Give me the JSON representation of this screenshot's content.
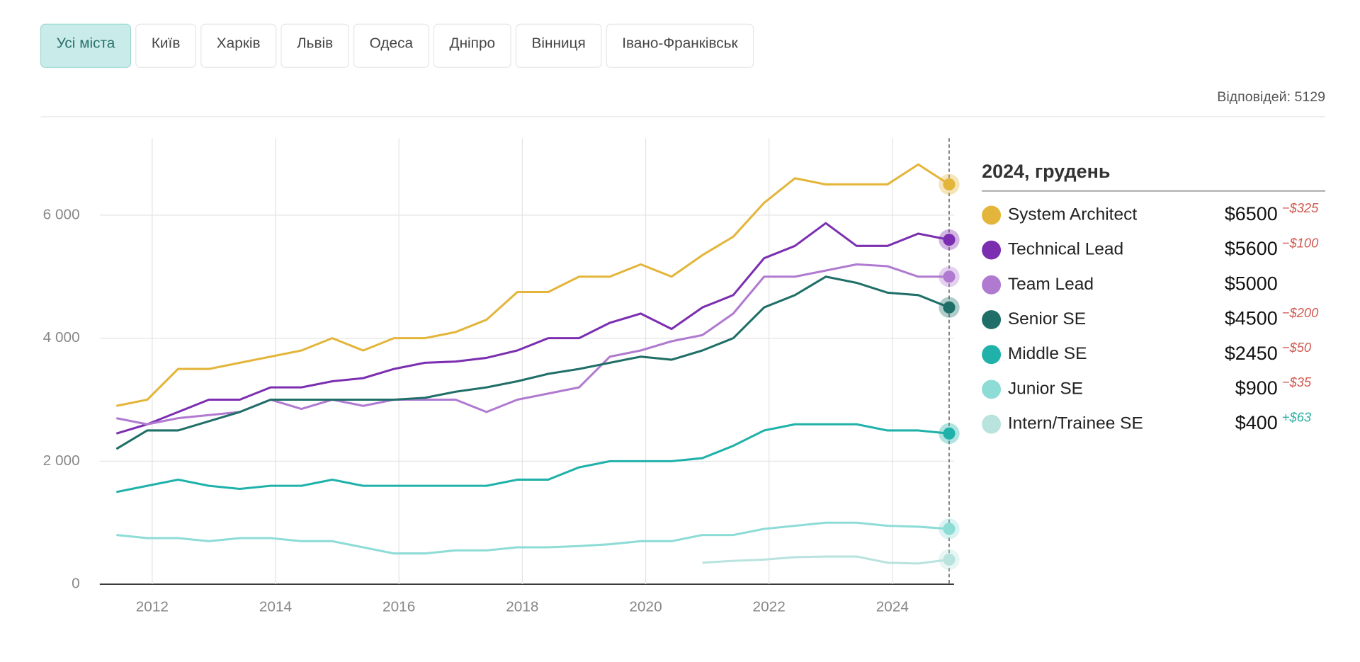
{
  "tabs": {
    "items": [
      "Усі міста",
      "Київ",
      "Харків",
      "Львів",
      "Одеса",
      "Дніпро",
      "Вінниця",
      "Івано-Франківськ"
    ],
    "active": 0
  },
  "responses": "Відповідей: 5129",
  "chart_data": {
    "type": "line",
    "x": [
      2011.42,
      2011.92,
      2012.42,
      2012.92,
      2013.42,
      2013.92,
      2014.42,
      2014.92,
      2015.42,
      2015.92,
      2016.42,
      2016.92,
      2017.42,
      2017.92,
      2018.42,
      2018.92,
      2019.42,
      2019.92,
      2020.42,
      2020.92,
      2021.42,
      2021.92,
      2022.42,
      2022.92,
      2023.42,
      2023.92,
      2024.42,
      2024.92
    ],
    "xlim": [
      2011.15,
      2025.0
    ],
    "xticks": [
      2012,
      2014,
      2016,
      2018,
      2020,
      2022,
      2024
    ],
    "ylim": [
      0,
      7250
    ],
    "yticks": [
      0,
      {
        "value": 2000,
        "label": "2 000"
      },
      {
        "value": 4000,
        "label": "4 000"
      },
      {
        "value": 6000,
        "label": "6 000"
      }
    ],
    "grid": true,
    "legend_title": "2024, грудень",
    "series": [
      {
        "name": "System Architect",
        "color": "#e3b53a",
        "values": [
          2900,
          3000,
          3500,
          3500,
          3600,
          3700,
          3800,
          4000,
          3800,
          4000,
          4000,
          4100,
          4300,
          4750,
          4750,
          5000,
          5000,
          5200,
          5000,
          5350,
          5650,
          6200,
          6600,
          6500,
          6500,
          6500,
          6825,
          6500
        ],
        "value_label": "$6500",
        "change": {
          "value": -325,
          "label": "−$325"
        }
      },
      {
        "name": "Technical Lead",
        "color": "#7b2fb0",
        "values": [
          2450,
          2600,
          2800,
          3000,
          3000,
          3200,
          3200,
          3300,
          3350,
          3500,
          3600,
          3620,
          3680,
          3800,
          4000,
          4000,
          4250,
          4400,
          4150,
          4500,
          4700,
          5300,
          5500,
          5870,
          5500,
          5500,
          5700,
          5600
        ],
        "value_label": "$5600",
        "change": {
          "value": -100,
          "label": "−$100"
        }
      },
      {
        "name": "Team Lead",
        "color": "#b07ad0",
        "values": [
          2700,
          2600,
          2700,
          2750,
          2800,
          3000,
          2850,
          3000,
          2900,
          3000,
          3000,
          3000,
          2800,
          3000,
          3100,
          3200,
          3700,
          3800,
          3950,
          4050,
          4400,
          5000,
          5000,
          5100,
          5200,
          5170,
          5000,
          5000
        ],
        "value_label": "$5000"
      },
      {
        "name": "Senior SE",
        "color": "#1f6f68",
        "values": [
          2200,
          2500,
          2500,
          2650,
          2800,
          3000,
          3000,
          3000,
          3000,
          3000,
          3030,
          3130,
          3200,
          3300,
          3420,
          3500,
          3600,
          3700,
          3650,
          3800,
          4000,
          4500,
          4700,
          5000,
          4900,
          4740,
          4700,
          4500
        ],
        "value_label": "$4500",
        "change": {
          "value": -200,
          "label": "−$200"
        }
      },
      {
        "name": "Middle SE",
        "color": "#20b2aa",
        "values": [
          1500,
          1600,
          1700,
          1600,
          1550,
          1600,
          1600,
          1700,
          1600,
          1600,
          1600,
          1600,
          1600,
          1700,
          1700,
          1900,
          2000,
          2000,
          2000,
          2050,
          2250,
          2500,
          2600,
          2600,
          2600,
          2500,
          2500,
          2450
        ],
        "value_label": "$2450",
        "change": {
          "value": -50,
          "label": "−$50"
        }
      },
      {
        "name": "Junior SE",
        "color": "#8edcd6",
        "values": [
          800,
          750,
          750,
          700,
          750,
          750,
          700,
          700,
          600,
          500,
          500,
          550,
          550,
          600,
          600,
          620,
          650,
          700,
          700,
          800,
          800,
          900,
          950,
          1000,
          1000,
          950,
          935,
          900
        ],
        "value_label": "$900",
        "change": {
          "value": -35,
          "label": "−$35"
        }
      },
      {
        "name": "Intern/Trainee SE",
        "color": "#b9e3de",
        "values": [
          null,
          null,
          null,
          null,
          null,
          null,
          null,
          null,
          null,
          null,
          null,
          null,
          null,
          null,
          null,
          null,
          null,
          null,
          null,
          350,
          380,
          400,
          440,
          450,
          450,
          350,
          337,
          400
        ],
        "value_label": "$400",
        "change": {
          "value": 63,
          "label": "+$63"
        }
      }
    ]
  }
}
